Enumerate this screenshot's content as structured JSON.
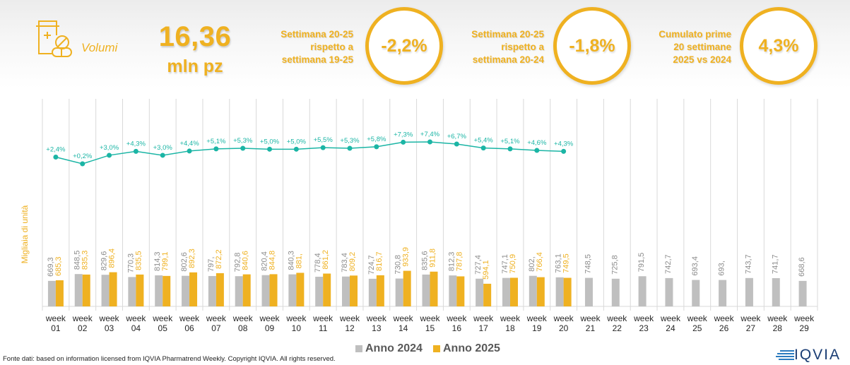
{
  "header": {
    "kpi_icon": "medicine-bottle-pills-icon",
    "kpi_label": "Volumi",
    "big_value": "16,36",
    "big_unit": "mln pz",
    "kpis": [
      {
        "desc": [
          "Settimana 20-25",
          "rispetto a",
          "settimana 19-25"
        ],
        "value": "-2,2%"
      },
      {
        "desc": [
          "Settimana 20-25",
          "rispetto a",
          "settimana 20-24"
        ],
        "value": "-1,8%"
      },
      {
        "desc": [
          "Cumulato prime",
          "20 settimane",
          "2025 vs 2024"
        ],
        "value": "4,3%"
      }
    ]
  },
  "colors": {
    "accent": "#EFB121",
    "series_2024": "#BFBFBF",
    "series_2025": "#EFB121",
    "line": "#1BB5A5",
    "grid": "#D9D9D9",
    "axis_text": "#262626"
  },
  "chart_data": {
    "type": "bar",
    "title": "",
    "xlabel": "",
    "ylabel": "Migliaia di unità",
    "categories": [
      "week 01",
      "week 02",
      "week 03",
      "week 04",
      "week 05",
      "week 06",
      "week 07",
      "week 08",
      "week 09",
      "week 10",
      "week 11",
      "week 12",
      "week 13",
      "week 14",
      "week 15",
      "week 16",
      "week 17",
      "week 18",
      "week 19",
      "week 20",
      "week 21",
      "week 22",
      "week 23",
      "week 24",
      "week 25",
      "week 26",
      "week 27",
      "week 28",
      "week 29"
    ],
    "series": [
      {
        "name": "Anno 2024",
        "values": [
          669.3,
          848.5,
          829.6,
          770.3,
          814.3,
          802.6,
          797,
          792.8,
          820.4,
          840.3,
          778.4,
          783.4,
          724.7,
          730.8,
          835.6,
          812.3,
          727.4,
          747.1,
          802,
          763.1,
          748.5,
          725.8,
          791.5,
          742.7,
          693.4,
          693,
          743.7,
          741.7,
          668.6
        ],
        "labels": [
          "669,3",
          "848,5",
          "829,6",
          "770,3",
          "814,3",
          "802,6",
          "797,",
          "792,8",
          "820,4",
          "840,3",
          "778,4",
          "783,4",
          "724,7",
          "730,8",
          "835,6",
          "812,3",
          "727,4",
          "747,1",
          "802,",
          "763,1",
          "748,5",
          "725,8",
          "791,5",
          "742,7",
          "693,4",
          "693,",
          "743,7",
          "741,7",
          "668,6"
        ]
      },
      {
        "name": "Anno 2025",
        "values": [
          685.3,
          835.3,
          896.4,
          835.5,
          799.1,
          892.3,
          872.2,
          840.6,
          844.8,
          881,
          861.2,
          809.2,
          816.7,
          933.9,
          911.8,
          787.8,
          594.1,
          750.9,
          766.4,
          749.5
        ],
        "labels": [
          "685,3",
          "835,3",
          "896,4",
          "835,5",
          "799,1",
          "892,3",
          "872,2",
          "840,6",
          "844,8",
          "881,",
          "861,2",
          "809,2",
          "816,7",
          "933,9",
          "911,8",
          "787,8",
          "594,1",
          "750,9",
          "766,4",
          "749,5"
        ]
      }
    ],
    "line_series": {
      "name": "Variazione % 2025 vs 2024",
      "values": [
        2.4,
        0.2,
        3.0,
        4.3,
        3.0,
        4.4,
        5.1,
        5.3,
        5.0,
        5.0,
        5.5,
        5.3,
        5.8,
        7.3,
        7.4,
        6.7,
        5.4,
        5.1,
        4.6,
        4.3
      ],
      "labels": [
        "+2,4%",
        "+0,2%",
        "+3,0%",
        "+4,3%",
        "+3,0%",
        "+4,4%",
        "+5,1%",
        "+5,3%",
        "+5,0%",
        "+5,0%",
        "+5,5%",
        "+5,3%",
        "+5,8%",
        "+7,3%",
        "+7,4%",
        "+6,7%",
        "+5,4%",
        "+5,1%",
        "+4,6%",
        "+4,3%"
      ]
    },
    "ylim": [
      0,
      1000
    ],
    "grid": "vertical category separators",
    "legend": "bottom-center"
  },
  "legend": [
    {
      "label": "Anno 2024"
    },
    {
      "label": "Anno 2025"
    }
  ],
  "footer": {
    "source_note": "Fonte dati: based on information licensed from IQVIA Pharmatrend Weekly. Copyright IQVIA. All rights reserved.",
    "logo_text": "IQVIA",
    "logo_icon": "iqvia-stripes-icon"
  }
}
